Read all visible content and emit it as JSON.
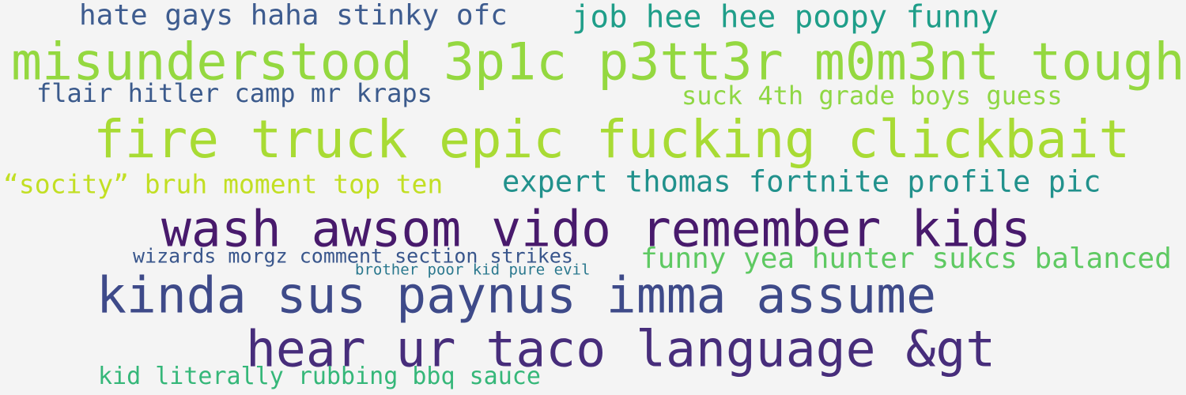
{
  "word_cloud": {
    "lines": [
      {
        "text": "hate gays haha stinky ofc",
        "color": "#3e5c8f"
      },
      {
        "text": "job hee hee poopy funny",
        "color": "#1f9e89"
      },
      {
        "text": "misunderstood 3p1c p3tt3r m0m3nt tough",
        "color": "#94d840"
      },
      {
        "text": "flair hitler camp mr kraps",
        "color": "#3b5a8c"
      },
      {
        "text": "suck 4th grade boys guess",
        "color": "#8fd744"
      },
      {
        "text": "fire truck epic fucking clickbait",
        "color": "#a8db34"
      },
      {
        "text": "“socity” bruh moment top ten",
        "color": "#c2df23"
      },
      {
        "text": "expert thomas fortnite profile pic",
        "color": "#21918c"
      },
      {
        "text": "wash awsom vido remember kids",
        "color": "#481a6c"
      },
      {
        "text": "wizards morgz comment section strikes",
        "color": "#39568c"
      },
      {
        "text": "brother poor kid pure evil",
        "color": "#2a788e"
      },
      {
        "text": "funny yea hunter sukcs balanced",
        "color": "#5ec962"
      },
      {
        "text": "kinda sus paynus imma assume",
        "color": "#3e4a89"
      },
      {
        "text": "hear ur taco language &gt",
        "color": "#472d7b"
      },
      {
        "text": "kid literally rubbing bbq sauce",
        "color": "#35b779"
      }
    ]
  }
}
